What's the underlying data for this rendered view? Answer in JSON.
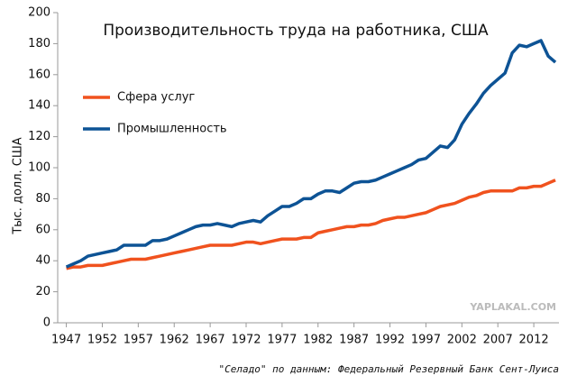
{
  "chart_data": {
    "type": "line",
    "title": "Производительность труда на работника, США",
    "y_label": "Тыс. долл. США",
    "credit": "\"Селадо\" по данным: Федеральный Резервный Банк Сент-Луиса",
    "watermark": "YAPLAKAL.COM",
    "x": [
      1947,
      1948,
      1949,
      1950,
      1951,
      1952,
      1953,
      1954,
      1955,
      1956,
      1957,
      1958,
      1959,
      1960,
      1961,
      1962,
      1963,
      1964,
      1965,
      1966,
      1967,
      1968,
      1969,
      1970,
      1971,
      1972,
      1973,
      1974,
      1975,
      1976,
      1977,
      1978,
      1979,
      1980,
      1981,
      1982,
      1983,
      1984,
      1985,
      1986,
      1987,
      1988,
      1989,
      1990,
      1991,
      1992,
      1993,
      1994,
      1995,
      1996,
      1997,
      1998,
      1999,
      2000,
      2001,
      2002,
      2003,
      2004,
      2005,
      2006,
      2007,
      2008,
      2009,
      2010,
      2011,
      2012,
      2013,
      2014,
      2015
    ],
    "series": [
      {
        "name": "Сфера услуг",
        "color": "#f0521e",
        "values": [
          35,
          36,
          36,
          37,
          37,
          37,
          38,
          39,
          40,
          41,
          41,
          41,
          42,
          43,
          44,
          45,
          46,
          47,
          48,
          49,
          50,
          50,
          50,
          50,
          51,
          52,
          52,
          51,
          52,
          53,
          54,
          54,
          54,
          55,
          55,
          58,
          59,
          60,
          61,
          62,
          62,
          63,
          63,
          64,
          66,
          67,
          68,
          68,
          69,
          70,
          71,
          73,
          75,
          76,
          77,
          79,
          81,
          82,
          84,
          85,
          85,
          85,
          85,
          87,
          87,
          88,
          88,
          90,
          92
        ]
      },
      {
        "name": "Промышленность",
        "color": "#0d5395",
        "values": [
          36,
          38,
          40,
          43,
          44,
          45,
          46,
          47,
          50,
          50,
          50,
          50,
          53,
          53,
          54,
          56,
          58,
          60,
          62,
          63,
          63,
          64,
          63,
          62,
          64,
          65,
          66,
          65,
          69,
          72,
          75,
          75,
          77,
          80,
          80,
          83,
          85,
          85,
          84,
          87,
          90,
          91,
          91,
          92,
          94,
          96,
          98,
          100,
          102,
          105,
          106,
          110,
          114,
          113,
          118,
          128,
          135,
          141,
          148,
          153,
          157,
          161,
          174,
          179,
          178,
          180,
          182,
          172,
          168
        ]
      }
    ],
    "xlim": [
      1945.8,
      2015.5
    ],
    "xticks": [
      1947,
      1952,
      1957,
      1962,
      1967,
      1972,
      1977,
      1982,
      1987,
      1992,
      1997,
      2002,
      2007,
      2012
    ],
    "ylim": [
      0,
      200
    ],
    "yticks": [
      0,
      20,
      40,
      60,
      80,
      100,
      120,
      140,
      160,
      180,
      200
    ],
    "legend": "upper left"
  }
}
